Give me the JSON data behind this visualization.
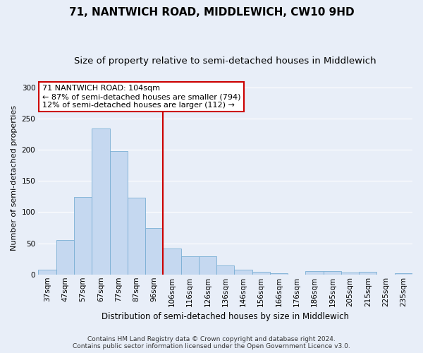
{
  "title1": "71, NANTWICH ROAD, MIDDLEWICH, CW10 9HD",
  "title2": "Size of property relative to semi-detached houses in Middlewich",
  "xlabel": "Distribution of semi-detached houses by size in Middlewich",
  "ylabel": "Number of semi-detached properties",
  "footnote1": "Contains HM Land Registry data © Crown copyright and database right 2024.",
  "footnote2": "Contains public sector information licensed under the Open Government Licence v3.0.",
  "annotation_title": "71 NANTWICH ROAD: 104sqm",
  "annotation_line1": "← 87% of semi-detached houses are smaller (794)",
  "annotation_line2": "12% of semi-detached houses are larger (112) →",
  "bar_labels": [
    "37sqm",
    "47sqm",
    "57sqm",
    "67sqm",
    "77sqm",
    "87sqm",
    "96sqm",
    "106sqm",
    "116sqm",
    "126sqm",
    "136sqm",
    "146sqm",
    "156sqm",
    "166sqm",
    "176sqm",
    "186sqm",
    "195sqm",
    "205sqm",
    "215sqm",
    "225sqm",
    "235sqm"
  ],
  "bar_values": [
    8,
    55,
    124,
    234,
    198,
    123,
    75,
    42,
    29,
    29,
    14,
    8,
    4,
    2,
    0,
    5,
    5,
    3,
    4,
    0,
    2
  ],
  "bar_color": "#c5d8f0",
  "bar_edge_color": "#7aafd4",
  "vline_color": "#cc0000",
  "annotation_box_color": "#ffffff",
  "annotation_box_edge": "#cc0000",
  "ylim": [
    0,
    310
  ],
  "yticks": [
    0,
    50,
    100,
    150,
    200,
    250,
    300
  ],
  "background_color": "#e8eef8",
  "grid_color": "#ffffff",
  "title1_fontsize": 11,
  "title2_fontsize": 9.5,
  "xlabel_fontsize": 8.5,
  "ylabel_fontsize": 8,
  "tick_fontsize": 7.5,
  "annotation_fontsize": 8,
  "footnote_fontsize": 6.5
}
